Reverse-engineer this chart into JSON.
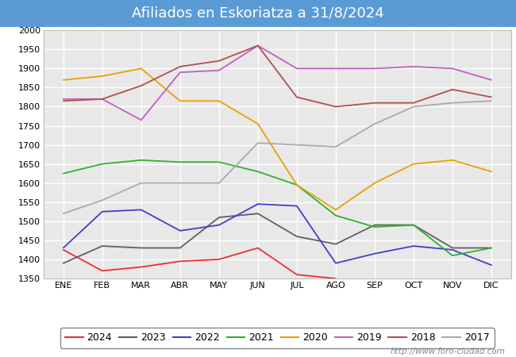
{
  "title": "Afiliados en Eskoriatza a 31/8/2024",
  "title_bg_color": "#5b9bd5",
  "title_text_color": "white",
  "ylim": [
    1350,
    2000
  ],
  "yticks": [
    1350,
    1400,
    1450,
    1500,
    1550,
    1600,
    1650,
    1700,
    1750,
    1800,
    1850,
    1900,
    1950,
    2000
  ],
  "months": [
    "ENE",
    "FEB",
    "MAR",
    "ABR",
    "MAY",
    "JUN",
    "JUL",
    "AGO",
    "SEP",
    "OCT",
    "NOV",
    "DIC"
  ],
  "watermark": "http://www.foro-ciudad.com",
  "series": {
    "2024": {
      "color": "#e83030",
      "values": [
        1425,
        1370,
        1380,
        1395,
        1400,
        1430,
        1360,
        1350,
        null,
        null,
        null,
        null
      ]
    },
    "2023": {
      "color": "#606060",
      "values": [
        1390,
        1435,
        1430,
        1430,
        1510,
        1520,
        1460,
        1440,
        1490,
        1490,
        1430,
        1430
      ]
    },
    "2022": {
      "color": "#4040cc",
      "values": [
        1430,
        1525,
        1530,
        1475,
        1490,
        1545,
        1540,
        1390,
        1415,
        1435,
        1425,
        1385
      ]
    },
    "2021": {
      "color": "#30b030",
      "values": [
        1625,
        1650,
        1660,
        1655,
        1655,
        1630,
        1595,
        1515,
        1485,
        1490,
        1410,
        1430
      ]
    },
    "2020": {
      "color": "#e8a000",
      "values": [
        1870,
        1880,
        1900,
        1815,
        1815,
        1755,
        1595,
        1530,
        1600,
        1650,
        1660,
        1630
      ]
    },
    "2019": {
      "color": "#c060c0",
      "values": [
        1820,
        1820,
        1765,
        1890,
        1895,
        1960,
        1900,
        1900,
        1900,
        1905,
        1900,
        1870
      ]
    },
    "2018": {
      "color": "#b05050",
      "values": [
        1815,
        1820,
        1855,
        1905,
        1920,
        1960,
        1825,
        1800,
        1810,
        1810,
        1845,
        1825
      ]
    },
    "2017": {
      "color": "#aaaaaa",
      "values": [
        1520,
        1555,
        1600,
        1600,
        1600,
        1705,
        1700,
        1695,
        1755,
        1800,
        1810,
        1815
      ]
    }
  },
  "legend_order": [
    "2024",
    "2023",
    "2022",
    "2021",
    "2020",
    "2019",
    "2018",
    "2017"
  ],
  "plot_bg_color": "#e8e8e8",
  "grid_color": "white",
  "fontsize_title": 13,
  "fontsize_ticks": 8,
  "fontsize_legend": 9,
  "fontsize_watermark": 7.5
}
